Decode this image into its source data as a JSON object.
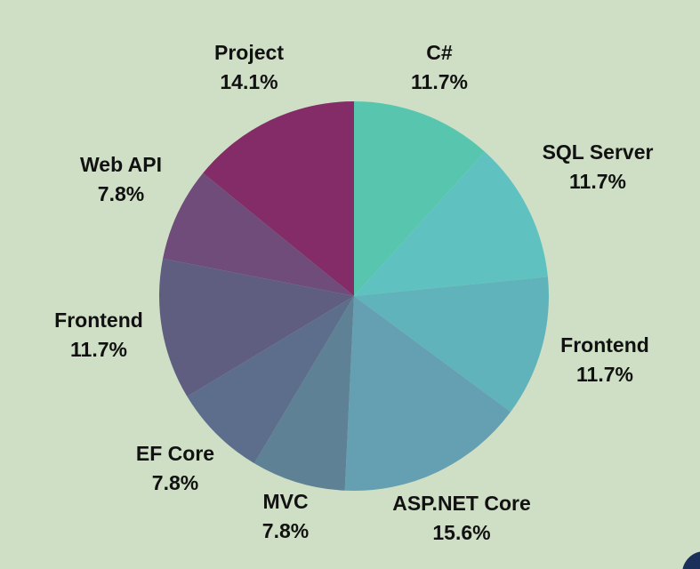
{
  "chart_data": {
    "type": "pie",
    "title": "",
    "slices": [
      {
        "label": "C#",
        "value": 11.7,
        "value_label": "11.7%",
        "color": "#58c6ae"
      },
      {
        "label": "SQL Server",
        "value": 11.7,
        "value_label": "11.7%",
        "color": "#5fc2c0"
      },
      {
        "label": "Frontend",
        "value": 11.7,
        "value_label": "11.7%",
        "color": "#60b3ba"
      },
      {
        "label": "ASP.NET Core",
        "value": 15.6,
        "value_label": "15.6%",
        "color": "#64a0b2"
      },
      {
        "label": "MVC",
        "value": 7.8,
        "value_label": "7.8%",
        "color": "#5f8195"
      },
      {
        "label": "EF Core",
        "value": 7.8,
        "value_label": "7.8%",
        "color": "#5d6e8c"
      },
      {
        "label": "Frontend",
        "value": 11.7,
        "value_label": "11.7%",
        "color": "#5f5e80"
      },
      {
        "label": "Web API",
        "value": 7.8,
        "value_label": "7.8%",
        "color": "#6f4c79"
      },
      {
        "label": "Project",
        "value": 14.1,
        "value_label": "14.1%",
        "color": "#832c67"
      }
    ],
    "start": "top",
    "direction": "clockwise",
    "legend": "none"
  },
  "background_color": "#cfdfc5"
}
